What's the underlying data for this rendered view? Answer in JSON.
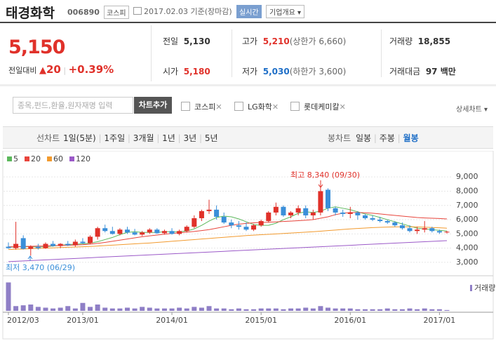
{
  "header": {
    "name": "태경화학",
    "code": "006890",
    "market": "코스피",
    "date": "2017.02.03 기준(장마감)",
    "realtime": "실시간",
    "company": "기업개요"
  },
  "quote": {
    "price": "5,150",
    "change_label": "전일대비",
    "change": "20",
    "rate": "+0.39%",
    "stats": [
      {
        "label": "전일",
        "value": "5,130"
      },
      {
        "label": "고가",
        "value": "5,210",
        "note": "(상한가 6,660)"
      },
      {
        "label": "거래량",
        "value": "18,855"
      },
      {
        "label": "시가",
        "value": "5,180"
      },
      {
        "label": "저가",
        "value": "5,030",
        "note": "(하한가 3,600)"
      },
      {
        "label": "거래대금",
        "value": "97 백만"
      }
    ]
  },
  "toolbar": {
    "placeholder": "종목,펀드,환율,원자재명 입력",
    "add": "차트추가",
    "compare": [
      "코스피",
      "LG화학",
      "롯데케미칼"
    ],
    "detail": "상세차트"
  },
  "periods": {
    "line_label": "선차트",
    "line": [
      "1일(5분)",
      "1주일",
      "3개월",
      "1년",
      "3년",
      "5년"
    ],
    "candle_label": "봉차트",
    "candle": [
      "일봉",
      "주봉",
      "월봉"
    ]
  },
  "chart_data": {
    "type": "candlestick",
    "categories": [
      "2012/03",
      null,
      null,
      null,
      null,
      null,
      null,
      null,
      null,
      null,
      "2013/01",
      null,
      null,
      null,
      null,
      null,
      null,
      null,
      null,
      null,
      null,
      null,
      "2014/01",
      null,
      null,
      null,
      null,
      null,
      null,
      null,
      null,
      null,
      null,
      null,
      "2015/01",
      null,
      null,
      null,
      null,
      null,
      null,
      null,
      null,
      null,
      null,
      null,
      "2016/01",
      null,
      null,
      null,
      null,
      null,
      null,
      null,
      null,
      null,
      null,
      null,
      "2017/01",
      null
    ],
    "open": [
      4100,
      4000,
      4700,
      3950,
      4100,
      4000,
      4300,
      4150,
      4300,
      4200,
      4450,
      4350,
      4800,
      5400,
      5200,
      5000,
      5300,
      5100,
      4950,
      5100,
      5300,
      5050,
      5200,
      5000,
      5200,
      5500,
      6100,
      6600,
      6700,
      6200,
      5800,
      5600,
      5500,
      5300,
      5600,
      5900,
      6500,
      6900,
      6300,
      6500,
      6800,
      6300,
      6500,
      8100,
      6800,
      6500,
      6400,
      6500,
      6300,
      6100,
      6000,
      5900,
      5800,
      5600,
      5400,
      5200,
      5300,
      5400,
      5200,
      5100
    ],
    "high": [
      4400,
      5850,
      4900,
      4200,
      4300,
      4400,
      4500,
      4350,
      4500,
      4600,
      4700,
      4900,
      5500,
      5650,
      5500,
      5400,
      5500,
      5350,
      5200,
      5400,
      5400,
      5300,
      5400,
      5300,
      5600,
      6300,
      6700,
      7400,
      7000,
      6500,
      6000,
      5900,
      5800,
      5700,
      6000,
      6600,
      7200,
      7000,
      6600,
      7000,
      7000,
      6700,
      8340,
      8200,
      6900,
      6700,
      6900,
      6600,
      6400,
      6300,
      6200,
      6000,
      5900,
      5800,
      5600,
      5500,
      5900,
      5500,
      5300,
      5210
    ],
    "low": [
      3950,
      3900,
      3900,
      3470,
      3900,
      3950,
      4100,
      4000,
      4150,
      4100,
      4300,
      4300,
      4600,
      5100,
      4950,
      4900,
      5000,
      4900,
      4850,
      5000,
      5000,
      4950,
      4950,
      4900,
      5100,
      5400,
      5900,
      6400,
      6000,
      5700,
      5400,
      5300,
      5200,
      5200,
      5500,
      5800,
      6300,
      6200,
      6100,
      6300,
      6100,
      6000,
      6300,
      6600,
      6300,
      6200,
      6100,
      6000,
      6000,
      5900,
      5800,
      5700,
      5500,
      5300,
      5100,
      5000,
      5100,
      5100,
      5000,
      5030
    ],
    "close": [
      4000,
      4300,
      3950,
      4100,
      4000,
      4300,
      4150,
      4300,
      4200,
      4450,
      4350,
      4800,
      5400,
      5200,
      5000,
      5300,
      5100,
      4950,
      5100,
      5300,
      5050,
      5200,
      5000,
      5200,
      5500,
      6100,
      6600,
      6700,
      6200,
      5800,
      5600,
      5500,
      5300,
      5600,
      5900,
      6500,
      6900,
      6300,
      6500,
      6800,
      6300,
      6500,
      8000,
      6800,
      6500,
      6400,
      6500,
      6300,
      6100,
      6000,
      5900,
      5800,
      5600,
      5400,
      5200,
      5300,
      5400,
      5200,
      5100,
      5150
    ],
    "up_color": "#e0312a",
    "down_color": "#3a8fd9",
    "ylim": [
      2700,
      9600
    ],
    "yticks": [
      {
        "value": 3000,
        "label": "3,000"
      },
      {
        "value": 4000,
        "label": "4,000"
      },
      {
        "value": 5000,
        "label": "5,000"
      },
      {
        "value": 6000,
        "label": "6,000"
      },
      {
        "value": 7000,
        "label": "7,000"
      },
      {
        "value": 8000,
        "label": "8,000"
      },
      {
        "value": 9000,
        "label": "9,000"
      }
    ],
    "grid": true,
    "ma_series": [
      {
        "name": "5",
        "color": "#5cb85c",
        "values": [
          4050,
          4100,
          4100,
          4100,
          4080,
          4100,
          4150,
          4200,
          4250,
          4280,
          4300,
          4350,
          4450,
          4600,
          4750,
          4950,
          5100,
          5150,
          5100,
          5100,
          5100,
          5150,
          5150,
          5150,
          5200,
          5350,
          5600,
          5900,
          6150,
          6250,
          6200,
          6050,
          5850,
          5650,
          5600,
          5600,
          5750,
          6000,
          6200,
          6450,
          6550,
          6500,
          6600,
          6800,
          6900,
          6800,
          6700,
          6550,
          6400,
          6300,
          6150,
          6000,
          5850,
          5700,
          5550,
          5400,
          5350,
          5300,
          5250,
          5200
        ]
      },
      {
        "name": "20",
        "color": "#e8453c",
        "values": [
          4100,
          4100,
          4120,
          4130,
          4140,
          4150,
          4170,
          4190,
          4200,
          4220,
          4240,
          4280,
          4330,
          4400,
          4480,
          4560,
          4640,
          4720,
          4800,
          4860,
          4920,
          4980,
          5030,
          5080,
          5120,
          5170,
          5230,
          5300,
          5400,
          5500,
          5600,
          5680,
          5740,
          5780,
          5800,
          5820,
          5840,
          5870,
          5900,
          5930,
          5960,
          6000,
          6100,
          6200,
          6350,
          6450,
          6500,
          6500,
          6480,
          6450,
          6400,
          6350,
          6300,
          6250,
          6200,
          6150,
          6120,
          6100,
          6080,
          6050
        ]
      },
      {
        "name": "60",
        "color": "#f29a2e",
        "values": [
          3900,
          3920,
          3940,
          3960,
          3980,
          4000,
          4020,
          4040,
          4060,
          4080,
          4100,
          4120,
          4150,
          4180,
          4210,
          4240,
          4270,
          4300,
          4330,
          4360,
          4400,
          4440,
          4480,
          4520,
          4560,
          4600,
          4640,
          4680,
          4720,
          4760,
          4800,
          4840,
          4880,
          4910,
          4940,
          4970,
          5000,
          5030,
          5060,
          5090,
          5120,
          5150,
          5190,
          5230,
          5270,
          5310,
          5350,
          5380,
          5410,
          5440,
          5460,
          5480,
          5490,
          5500,
          5500,
          5490,
          5470,
          5450,
          5430,
          5400
        ]
      },
      {
        "name": "120",
        "color": "#9b59c8",
        "values": [
          3050,
          3075,
          3100,
          3125,
          3150,
          3175,
          3200,
          3225,
          3250,
          3275,
          3300,
          3325,
          3350,
          3375,
          3400,
          3425,
          3450,
          3475,
          3500,
          3525,
          3550,
          3575,
          3600,
          3625,
          3650,
          3675,
          3700,
          3725,
          3750,
          3775,
          3800,
          3825,
          3850,
          3875,
          3900,
          3925,
          3950,
          3975,
          4000,
          4025,
          4050,
          4075,
          4100,
          4125,
          4150,
          4175,
          4200,
          4225,
          4250,
          4275,
          4300,
          4325,
          4350,
          4375,
          4400,
          4425,
          4450,
          4475,
          4500,
          4525
        ]
      }
    ],
    "volume": {
      "label": "거래량",
      "color": "#8f7fc6",
      "ylim": [
        0,
        40
      ],
      "values": [
        36,
        6,
        7,
        8,
        5,
        4,
        3,
        4,
        6,
        3,
        10,
        5,
        8,
        4,
        3,
        3,
        4,
        3,
        5,
        4,
        3,
        3,
        3,
        4,
        3,
        5,
        4,
        6,
        3,
        3,
        2,
        3,
        2,
        2,
        3,
        3,
        3,
        2,
        3,
        3,
        4,
        3,
        6,
        4,
        3,
        3,
        3,
        2,
        2,
        2,
        2,
        3,
        2,
        2,
        3,
        2,
        3,
        2,
        2,
        1
      ]
    },
    "max_label": "최고 8,340 (09/30)",
    "min_label": "최저 3,470 (06/29)"
  }
}
